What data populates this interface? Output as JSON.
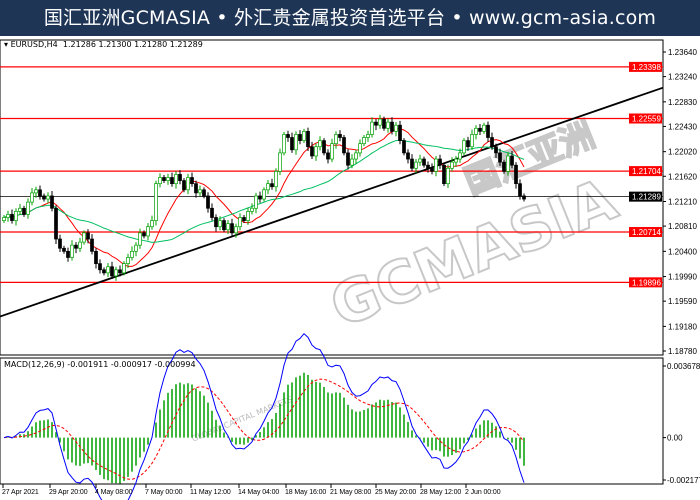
{
  "banner": {
    "text": "国汇亚洲GCMASIA • 外汇贵金属投资首选平台 • www.gcm-asia.com"
  },
  "watermark": {
    "text": "GCMASIA",
    "subtext": "GLOBAL CAPITAL MARKETS",
    "cn": "国汇亚洲"
  },
  "chart_data": [
    {
      "type": "candlestick",
      "symbol": "EURUSD,H4",
      "ohlc_header": "1.21286 1.21300 1.21280 1.21289",
      "ylim": [
        1.1878,
        1.2364
      ],
      "y_ticks": [
        "1.23640",
        "1.23240",
        "1.22830",
        "1.22430",
        "1.22020",
        "1.21620",
        "1.21210",
        "1.20810",
        "1.20400",
        "1.19990",
        "1.19590",
        "1.19180",
        "1.18780"
      ],
      "x_ticks": [
        "27 Apr 2021",
        "29 Apr 20:00",
        "4 May 08:00",
        "7 May 00:00",
        "11 May 12:00",
        "14 May 04:00",
        "18 May 16:00",
        "21 May 08:00",
        "25 May 20:00",
        "28 May 12:00",
        "2 Jun 00:00"
      ],
      "horizontal_levels": [
        "1.23398",
        "1.22559",
        "1.21704",
        "1.20714",
        "1.19896"
      ],
      "current_price": "1.21289",
      "colors": {
        "level": "#ff0000",
        "ma_fast": "#ff0000",
        "ma_slow": "#00c060",
        "trendline": "#000000",
        "bull": "#00a000",
        "bear": "#000000"
      },
      "trendline": {
        "start_price": 1.1934,
        "end_price": 1.2306
      },
      "closes": [
        1.2095,
        1.21,
        1.209,
        1.2105,
        1.211,
        1.21,
        1.212,
        1.2135,
        1.214,
        1.213,
        1.2125,
        1.213,
        1.211,
        1.206,
        1.2045,
        1.204,
        1.203,
        1.205,
        1.2045,
        1.2055,
        1.207,
        1.206,
        1.204,
        1.202,
        1.201,
        1.2005,
        1.2015,
        1.2,
        1.201,
        1.2005,
        1.202,
        1.203,
        1.204,
        1.205,
        1.207,
        1.2065,
        1.208,
        1.209,
        1.215,
        1.216,
        1.2155,
        1.216,
        1.215,
        1.2165,
        1.2155,
        1.214,
        1.216,
        1.215,
        1.2135,
        1.214,
        1.213,
        1.211,
        1.2095,
        1.208,
        1.209,
        1.2075,
        1.2085,
        1.207,
        1.208,
        1.2095,
        1.209,
        1.2105,
        1.211,
        1.213,
        1.2125,
        1.214,
        1.215,
        1.2145,
        1.217,
        1.22,
        1.223,
        1.2225,
        1.2205,
        1.223,
        1.222,
        1.2235,
        1.221,
        1.2195,
        1.221,
        1.222,
        1.22,
        1.219,
        1.2215,
        1.223,
        1.2225,
        1.22,
        1.218,
        1.219,
        1.22,
        1.2215,
        1.2225,
        1.223,
        1.225,
        1.2245,
        1.2255,
        1.224,
        1.225,
        1.2235,
        1.2245,
        1.222,
        1.22,
        1.219,
        1.2175,
        1.2185,
        1.219,
        1.218,
        1.2175,
        1.217,
        1.219,
        1.218,
        1.215,
        1.2175,
        1.2185,
        1.219,
        1.22,
        1.222,
        1.221,
        1.223,
        1.224,
        1.2235,
        1.2245,
        1.2225,
        1.221,
        1.22,
        1.2185,
        1.217,
        1.2195,
        1.218,
        1.215,
        1.213,
        1.2125
      ]
    },
    {
      "type": "macd",
      "label": "MACD(12,26,9) -0.001911 -0.000917 -0.000994",
      "ylim": [
        -0.002177,
        0.003678
      ],
      "y_ticks": [
        "0.003678",
        "0.00",
        "-0.002177"
      ],
      "colors": {
        "histogram": "#00a000",
        "signal": "#ff0000",
        "main": "#0000ff"
      }
    }
  ]
}
